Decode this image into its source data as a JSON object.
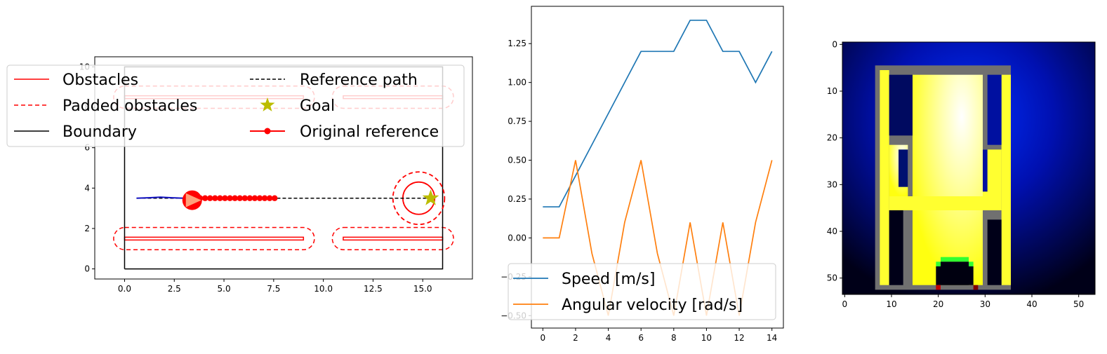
{
  "chart_data": [
    {
      "type": "line",
      "subtype": "map",
      "xlim": [
        -1.5,
        17.5
      ],
      "ylim": [
        -0.5,
        10.5
      ],
      "x_ticks": [
        "0.0",
        "2.5",
        "5.0",
        "7.5",
        "10.0",
        "12.5",
        "15.0"
      ],
      "x_tick_values": [
        0,
        2.5,
        5,
        7.5,
        10,
        12.5,
        15
      ],
      "y_ticks": [
        "0",
        "2",
        "4",
        "6",
        "8",
        "10"
      ],
      "y_tick_values": [
        0,
        2,
        4,
        6,
        8,
        10
      ],
      "boundary": [
        [
          0,
          0
        ],
        [
          16,
          0
        ],
        [
          16,
          10
        ],
        [
          0,
          10
        ],
        [
          0,
          0
        ]
      ],
      "obstacles": [
        {
          "x0": 0,
          "x1": 9,
          "y": 1.5
        },
        {
          "x0": 11,
          "x1": 16,
          "y": 1.5
        },
        {
          "x0": 0,
          "x1": 9,
          "y": 8.5
        },
        {
          "x0": 11,
          "x1": 16,
          "y": 8.5
        }
      ],
      "circle_obstacle": {
        "cx": 14.8,
        "cy": 3.5,
        "r": 0.8,
        "padded_r": 1.3
      },
      "reference_path": {
        "x": [
          0.6,
          15.5
        ],
        "y": [
          3.5,
          3.5
        ]
      },
      "goal": {
        "x": 15.4,
        "y": 3.5
      },
      "original_reference_x": [
        3.8,
        4.05,
        4.3,
        4.55,
        4.8,
        5.05,
        5.3,
        5.55,
        5.8,
        6.05,
        6.3,
        6.55,
        6.8,
        7.05,
        7.3,
        7.55
      ],
      "original_reference_y": 3.5,
      "trajectory": {
        "x": [
          0.6,
          1.2,
          1.8,
          2.4,
          3.0,
          3.3
        ],
        "y": [
          3.5,
          3.52,
          3.55,
          3.52,
          3.5,
          3.5
        ]
      },
      "robot": {
        "x": 3.4,
        "y": 3.4
      },
      "legend": [
        "Obstacles",
        "Reference path",
        "Padded obstacles",
        "Goal",
        "Boundary",
        "Original reference"
      ],
      "legend_placement": "upper-left, overlapping"
    },
    {
      "type": "line",
      "x": [
        0,
        1,
        2,
        3,
        4,
        5,
        6,
        7,
        8,
        9,
        10,
        11,
        12,
        13,
        14
      ],
      "series": [
        {
          "name": "Speed [m/s]",
          "color": "#1f77b4",
          "values": [
            0.2,
            0.2,
            0.4,
            0.6,
            0.8,
            1.0,
            1.2,
            1.2,
            1.2,
            1.4,
            1.4,
            1.2,
            1.2,
            1.0,
            1.2
          ]
        },
        {
          "name": "Angular velocity [rad/s]",
          "color": "#ff7f0e",
          "values": [
            0.0,
            0.0,
            0.5,
            -0.1,
            -0.5,
            0.1,
            0.5,
            -0.1,
            -0.5,
            0.1,
            -0.5,
            0.1,
            -0.5,
            0.1,
            0.5
          ]
        }
      ],
      "xlim": [
        -0.7,
        14.7
      ],
      "ylim": [
        -0.58,
        1.49
      ],
      "x_ticks": [
        "0",
        "2",
        "4",
        "6",
        "8",
        "10",
        "12",
        "14"
      ],
      "x_tick_values": [
        0,
        2,
        4,
        6,
        8,
        10,
        12,
        14
      ],
      "y_ticks": [
        "−0.50",
        "−0.25",
        "0.00",
        "0.25",
        "0.50",
        "0.75",
        "1.00",
        "1.25"
      ],
      "y_tick_values": [
        -0.5,
        -0.25,
        0,
        0.25,
        0.5,
        0.75,
        1.0,
        1.25
      ],
      "legend_placement": "lower-left"
    },
    {
      "type": "heatmap",
      "xlim": [
        -0.5,
        53.5
      ],
      "ylim": [
        53.5,
        -0.5
      ],
      "x_ticks": [
        "0",
        "10",
        "20",
        "30",
        "40",
        "50"
      ],
      "x_tick_values": [
        0,
        10,
        20,
        30,
        40,
        50
      ],
      "y_ticks": [
        "0",
        "10",
        "20",
        "30",
        "40",
        "50"
      ],
      "y_tick_values": [
        0,
        10,
        20,
        30,
        40,
        50
      ],
      "colors": {
        "background": "#000022",
        "glow": "#0018c8",
        "free": "#ffff30",
        "obstacle_edge": "#707070",
        "goal_marker": "#30ff30"
      }
    }
  ]
}
